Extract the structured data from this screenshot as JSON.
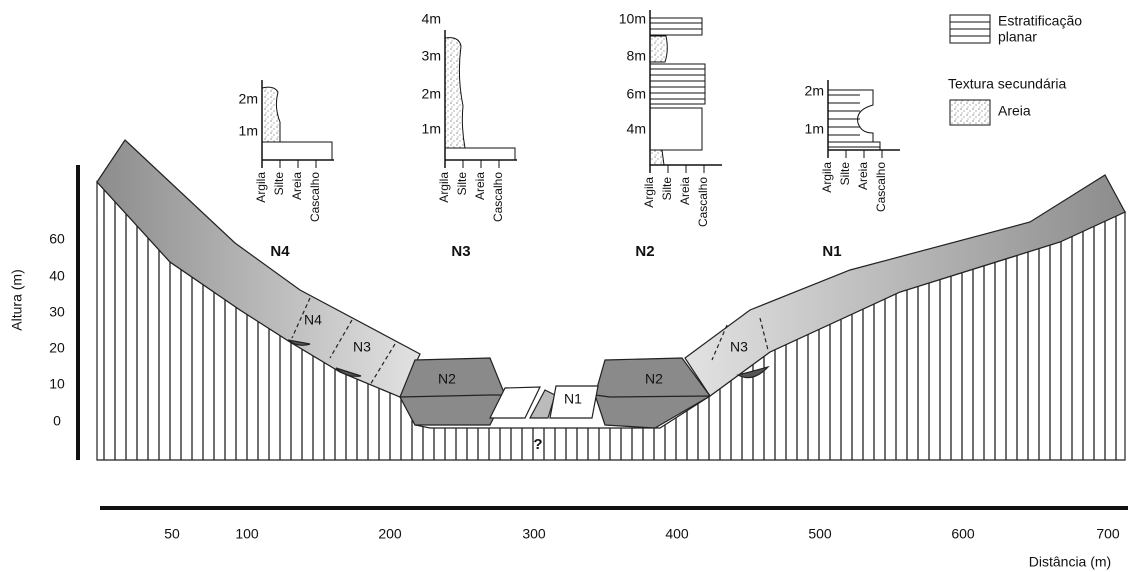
{
  "legend": {
    "stratification": [
      "Estratificação",
      "planar"
    ],
    "secondary_texture": "Textura secundária",
    "sand": "Areia"
  },
  "logs": [
    {
      "name": "N4",
      "scale_labels": [
        "2m",
        "1m"
      ],
      "grain_sizes": [
        "Argila",
        "Silte",
        "Areia",
        "Cascalho"
      ]
    },
    {
      "name": "N3",
      "scale_labels": [
        "4m",
        "3m",
        "2m",
        "1m"
      ],
      "grain_sizes": [
        "Argila",
        "Silte",
        "Areia",
        "Cascalho"
      ]
    },
    {
      "name": "N2",
      "scale_labels": [
        "10m",
        "8m",
        "6m",
        "4m"
      ],
      "grain_sizes": [
        "Argila",
        "Silte",
        "Areia",
        "Cascalho"
      ]
    },
    {
      "name": "N1",
      "scale_labels": [
        "2m",
        "1m"
      ],
      "grain_sizes": [
        "Argila",
        "Silte",
        "Areia",
        "Cascalho"
      ]
    }
  ],
  "section": {
    "terraces": [
      "N4",
      "N3",
      "N2",
      "N1",
      "N2",
      "N3"
    ],
    "unknown": "?"
  },
  "y_axis": {
    "title": "Altura (m)",
    "labels": [
      60,
      40,
      30,
      20,
      10,
      0
    ]
  },
  "x_axis": {
    "title": "Distância (m)",
    "labels": [
      50,
      100,
      200,
      300,
      400,
      500,
      600,
      700
    ]
  }
}
